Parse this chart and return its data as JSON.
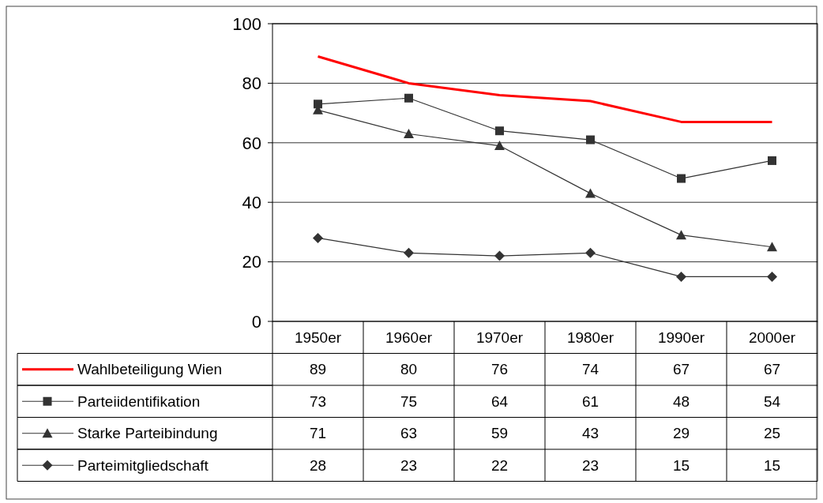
{
  "chart_data": {
    "type": "line",
    "categories": [
      "1950er",
      "1960er",
      "1970er",
      "1980er",
      "1990er",
      "2000er"
    ],
    "series": [
      {
        "name": "Wahlbeteiligung Wien",
        "color": "#ff0000",
        "marker": "none",
        "values": [
          89,
          80,
          76,
          74,
          67,
          67
        ]
      },
      {
        "name": "Parteiidentifikation",
        "color": "#333333",
        "marker": "square",
        "values": [
          73,
          75,
          64,
          61,
          48,
          54
        ]
      },
      {
        "name": "Starke Parteibindung",
        "color": "#333333",
        "marker": "triangle",
        "values": [
          71,
          63,
          59,
          43,
          29,
          25
        ]
      },
      {
        "name": "Parteimitgliedschaft",
        "color": "#333333",
        "marker": "diamond",
        "values": [
          28,
          23,
          22,
          23,
          15,
          15
        ]
      }
    ],
    "ylim": [
      0,
      100
    ],
    "yticks": [
      0,
      20,
      40,
      60,
      80,
      100
    ],
    "grid": "y",
    "legend": "bottom",
    "data_labels": true
  }
}
